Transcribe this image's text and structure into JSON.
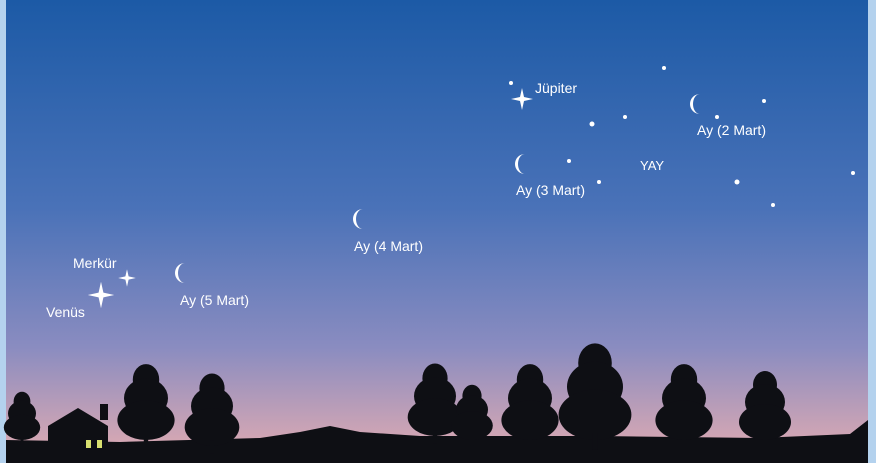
{
  "labels": {
    "jupiter": "Jüpiter",
    "moon_2": "Ay (2 Mart)",
    "moon_3": "Ay (3 Mart)",
    "sagittarius": "YAY",
    "moon_4": "Ay (4 Mart)",
    "moon_5": "Ay (5 Mart)",
    "mercury": "Merkür",
    "venus": "Venüs"
  }
}
